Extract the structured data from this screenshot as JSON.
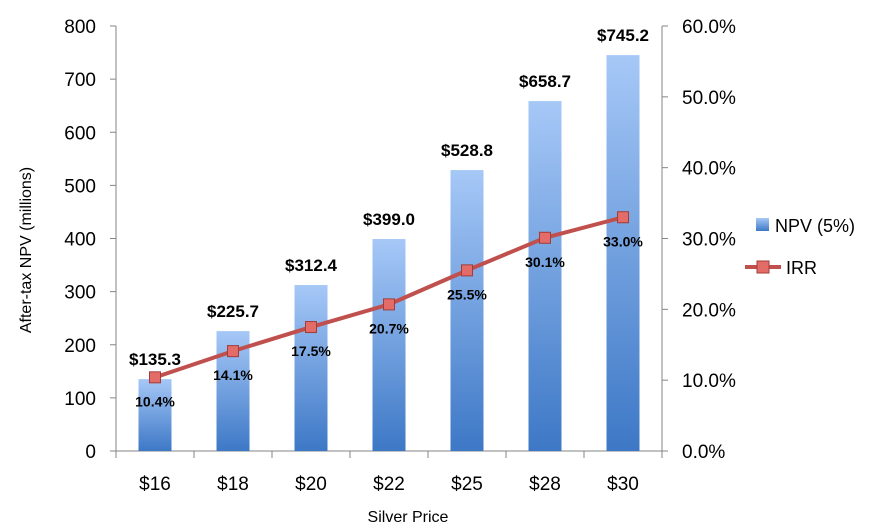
{
  "chart_data": {
    "type": "bar",
    "categories": [
      "$16",
      "$18",
      "$20",
      "$22",
      "$25",
      "$28",
      "$30"
    ],
    "series": [
      {
        "name": "NPV (5%)",
        "type": "bar",
        "axis": "left",
        "values": [
          135.3,
          225.7,
          312.4,
          399.0,
          528.8,
          658.7,
          745.2
        ],
        "labels": [
          "$135.3",
          "$225.7",
          "$312.4",
          "$399.0",
          "$528.8",
          "$658.7",
          "$745.2"
        ],
        "color": "#4a82c8"
      },
      {
        "name": "IRR",
        "type": "line",
        "axis": "right",
        "values": [
          10.4,
          14.1,
          17.5,
          20.7,
          25.5,
          30.1,
          33.0
        ],
        "labels": [
          "10.4%",
          "14.1%",
          "17.5%",
          "20.7%",
          "25.5%",
          "30.1%",
          "33.0%"
        ],
        "color": "#c0504d"
      }
    ],
    "xlabel": "Silver Price",
    "ylabel": "After-tax NPV (millions)",
    "ylim": [
      0,
      800
    ],
    "yticks": [
      "0",
      "100",
      "200",
      "300",
      "400",
      "500",
      "600",
      "700",
      "800"
    ],
    "y2lim": [
      0,
      60
    ],
    "y2ticks": [
      "0.0%",
      "10.0%",
      "20.0%",
      "30.0%",
      "40.0%",
      "50.0%",
      "60.0%"
    ],
    "grid": false,
    "legend": "right"
  }
}
